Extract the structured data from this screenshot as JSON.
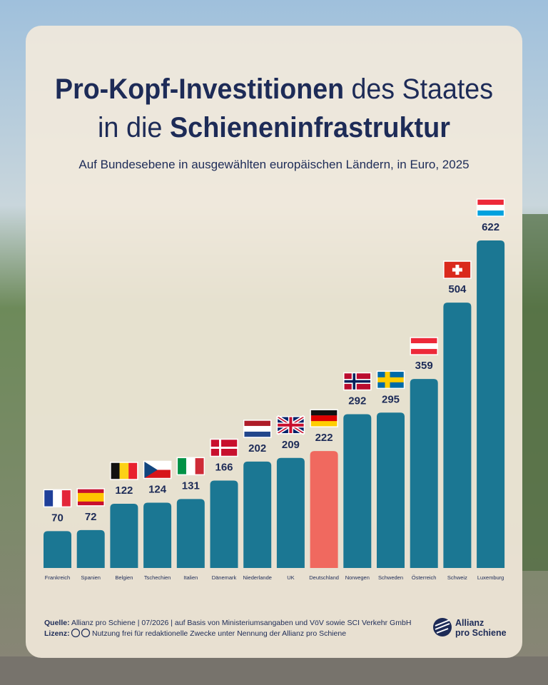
{
  "header": {
    "title_line1_bold": "Pro-Kopf-Investitionen",
    "title_line1_rest": "des Staates",
    "title_line2_rest": "in die",
    "title_line2_bold": "Schieneninfrastruktur",
    "subtitle": "Auf Bundesebene in ausgewählten europäischen Ländern, in Euro, 2025"
  },
  "chart_data": {
    "type": "bar",
    "categories": [
      "Frankreich",
      "Spanien",
      "Belgien",
      "Tschechien",
      "Italien",
      "Dänemark",
      "Niederlande",
      "UK",
      "Deutschland",
      "Norwegen",
      "Schweden",
      "Österreich",
      "Schweiz",
      "Luxemburg"
    ],
    "values": [
      70,
      72,
      122,
      124,
      131,
      166,
      202,
      209,
      222,
      292,
      295,
      359,
      504,
      622
    ],
    "colors": [
      "#1b7793",
      "#1b7793",
      "#1b7793",
      "#1b7793",
      "#1b7793",
      "#1b7793",
      "#1b7793",
      "#1b7793",
      "#f0695f",
      "#1b7793",
      "#1b7793",
      "#1b7793",
      "#1b7793",
      "#1b7793"
    ]
  },
  "footer": {
    "source_label": "Quelle:",
    "source": "Allianz pro Schiene | 07/2026 | auf Basis von Ministeriumsangaben und VöV sowie SCI Verkehr GmbH",
    "license_label": "Lizenz:",
    "license": "Nutzung frei für redaktionelle Zwecke unter Nennung der Allianz pro Schiene",
    "logo_line1": "Allianz",
    "logo_line2": "pro Schiene"
  }
}
